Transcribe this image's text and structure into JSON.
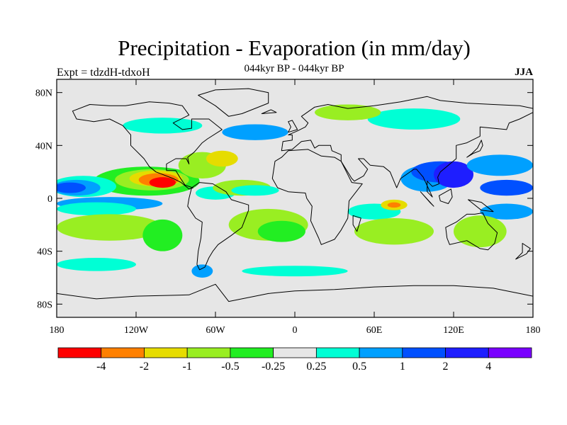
{
  "title": "Precipitation - Evaporation (in mm/day)",
  "subtitle": "044kyr BP - 044kyr BP",
  "left_label": "Expt = tdzdH-tdxoH",
  "right_label": "JJA",
  "map": {
    "projection": "cylindrical-equidistant",
    "lon_range": [
      -180,
      180
    ],
    "lat_range": [
      -90,
      90
    ],
    "background_color": "#e6e6e6",
    "y_ticks": [
      {
        "lat": 80,
        "label": "80N"
      },
      {
        "lat": 40,
        "label": "40N"
      },
      {
        "lat": 0,
        "label": "0"
      },
      {
        "lat": -40,
        "label": "40S"
      },
      {
        "lat": -80,
        "label": "80S"
      }
    ],
    "x_ticks": [
      {
        "lon": -180,
        "label": "180"
      },
      {
        "lon": -120,
        "label": "120W"
      },
      {
        "lon": -60,
        "label": "60W"
      },
      {
        "lon": 0,
        "label": "0"
      },
      {
        "lon": 60,
        "label": "60E"
      },
      {
        "lon": 120,
        "label": "120E"
      },
      {
        "lon": 180,
        "label": "180"
      }
    ]
  },
  "colorbar": {
    "colors": [
      "#ff0000",
      "#ff8000",
      "#e6dc00",
      "#99ee22",
      "#22ee22",
      "#e6e6e6",
      "#00ffd5",
      "#00a0ff",
      "#0050ff",
      "#1e1eff",
      "#7a00ff"
    ],
    "labels": [
      "-4",
      "-2",
      "-1",
      "-0.5",
      "-0.25",
      "0.25",
      "0.5",
      "1",
      "2",
      "4"
    ]
  },
  "fields": [
    {
      "color": "#22ee22",
      "lon": -112,
      "lat": 13,
      "rx": 40,
      "ry": 11
    },
    {
      "color": "#99ee22",
      "lon": -108,
      "lat": 14,
      "rx": 28,
      "ry": 8
    },
    {
      "color": "#e6dc00",
      "lon": -105,
      "lat": 15,
      "rx": 20,
      "ry": 6
    },
    {
      "color": "#ff8000",
      "lon": -103,
      "lat": 14,
      "rx": 15,
      "ry": 5
    },
    {
      "color": "#ff0000",
      "lon": -100,
      "lat": 12,
      "rx": 10,
      "ry": 4
    },
    {
      "color": "#00ffd5",
      "lon": -160,
      "lat": 9,
      "rx": 25,
      "ry": 8
    },
    {
      "color": "#00a0ff",
      "lon": -165,
      "lat": 8,
      "rx": 18,
      "ry": 6
    },
    {
      "color": "#0050ff",
      "lon": -170,
      "lat": 8,
      "rx": 12,
      "ry": 4
    },
    {
      "color": "#00a0ff",
      "lon": -140,
      "lat": -4,
      "rx": 40,
      "ry": 5
    },
    {
      "color": "#00ffd5",
      "lon": -150,
      "lat": -8,
      "rx": 30,
      "ry": 5
    },
    {
      "color": "#99ee22",
      "lon": -140,
      "lat": -22,
      "rx": 40,
      "ry": 10
    },
    {
      "color": "#22ee22",
      "lon": -100,
      "lat": -28,
      "rx": 15,
      "ry": 12
    },
    {
      "color": "#00ffd5",
      "lon": -60,
      "lat": 4,
      "rx": 15,
      "ry": 5
    },
    {
      "color": "#99ee22",
      "lon": -70,
      "lat": 25,
      "rx": 18,
      "ry": 10
    },
    {
      "color": "#e6dc00",
      "lon": -55,
      "lat": 30,
      "rx": 12,
      "ry": 6
    },
    {
      "color": "#99ee22",
      "lon": -40,
      "lat": 8,
      "rx": 22,
      "ry": 6
    },
    {
      "color": "#00ffd5",
      "lon": -30,
      "lat": 6,
      "rx": 18,
      "ry": 4
    },
    {
      "color": "#99ee22",
      "lon": -20,
      "lat": -20,
      "rx": 30,
      "ry": 12
    },
    {
      "color": "#22ee22",
      "lon": -10,
      "lat": -25,
      "rx": 18,
      "ry": 8
    },
    {
      "color": "#00ffd5",
      "lon": 60,
      "lat": -10,
      "rx": 20,
      "ry": 6
    },
    {
      "color": "#99ee22",
      "lon": 75,
      "lat": -25,
      "rx": 30,
      "ry": 10
    },
    {
      "color": "#e6dc00",
      "lon": 75,
      "lat": -5,
      "rx": 10,
      "ry": 4
    },
    {
      "color": "#ff8000",
      "lon": 75,
      "lat": -5,
      "rx": 5,
      "ry": 2
    },
    {
      "color": "#00a0ff",
      "lon": 100,
      "lat": 15,
      "rx": 20,
      "ry": 10
    },
    {
      "color": "#0050ff",
      "lon": 110,
      "lat": 20,
      "rx": 22,
      "ry": 8
    },
    {
      "color": "#1e1eff",
      "lon": 120,
      "lat": 18,
      "rx": 15,
      "ry": 10
    },
    {
      "color": "#00a0ff",
      "lon": 155,
      "lat": 25,
      "rx": 25,
      "ry": 8
    },
    {
      "color": "#0050ff",
      "lon": 160,
      "lat": 8,
      "rx": 20,
      "ry": 6
    },
    {
      "color": "#00a0ff",
      "lon": 160,
      "lat": -10,
      "rx": 20,
      "ry": 6
    },
    {
      "color": "#99ee22",
      "lon": 140,
      "lat": -25,
      "rx": 20,
      "ry": 12
    },
    {
      "color": "#00ffd5",
      "lon": -150,
      "lat": -50,
      "rx": 30,
      "ry": 5
    },
    {
      "color": "#00a0ff",
      "lon": -70,
      "lat": -55,
      "rx": 8,
      "ry": 5
    },
    {
      "color": "#00ffd5",
      "lon": 0,
      "lat": -55,
      "rx": 40,
      "ry": 4
    },
    {
      "color": "#00a0ff",
      "lon": -30,
      "lat": 50,
      "rx": 25,
      "ry": 6
    },
    {
      "color": "#00ffd5",
      "lon": -100,
      "lat": 55,
      "rx": 30,
      "ry": 6
    },
    {
      "color": "#00ffd5",
      "lon": 90,
      "lat": 60,
      "rx": 35,
      "ry": 8
    },
    {
      "color": "#99ee22",
      "lon": 40,
      "lat": 65,
      "rx": 25,
      "ry": 6
    }
  ],
  "continents": [
    [
      [
        -168,
        66
      ],
      [
        -155,
        71
      ],
      [
        -140,
        70
      ],
      [
        -128,
        70
      ],
      [
        -110,
        73
      ],
      [
        -95,
        72
      ],
      [
        -85,
        70
      ],
      [
        -80,
        63
      ],
      [
        -92,
        57
      ],
      [
        -85,
        52
      ],
      [
        -78,
        53
      ],
      [
        -78,
        60
      ],
      [
        -65,
        60
      ],
      [
        -55,
        52
      ],
      [
        -66,
        45
      ],
      [
        -70,
        42
      ],
      [
        -76,
        35
      ],
      [
        -81,
        31
      ],
      [
        -80,
        26
      ],
      [
        -82,
        30
      ],
      [
        -90,
        30
      ],
      [
        -97,
        26
      ],
      [
        -97,
        21
      ],
      [
        -90,
        21
      ],
      [
        -87,
        16
      ],
      [
        -83,
        10
      ],
      [
        -77,
        8
      ],
      [
        -80,
        7
      ],
      [
        -86,
        12
      ],
      [
        -92,
        15
      ],
      [
        -105,
        20
      ],
      [
        -110,
        24
      ],
      [
        -114,
        30
      ],
      [
        -117,
        33
      ],
      [
        -124,
        40
      ],
      [
        -124,
        48
      ],
      [
        -130,
        55
      ],
      [
        -140,
        60
      ],
      [
        -152,
        58
      ],
      [
        -165,
        60
      ],
      [
        -168,
        66
      ]
    ],
    [
      [
        -78,
        8
      ],
      [
        -72,
        12
      ],
      [
        -62,
        11
      ],
      [
        -52,
        5
      ],
      [
        -48,
        -1
      ],
      [
        -35,
        -5
      ],
      [
        -35,
        -9
      ],
      [
        -40,
        -22
      ],
      [
        -48,
        -28
      ],
      [
        -58,
        -35
      ],
      [
        -62,
        -40
      ],
      [
        -65,
        -45
      ],
      [
        -68,
        -52
      ],
      [
        -72,
        -54
      ],
      [
        -74,
        -50
      ],
      [
        -73,
        -40
      ],
      [
        -71,
        -30
      ],
      [
        -70,
        -18
      ],
      [
        -75,
        -15
      ],
      [
        -81,
        -6
      ],
      [
        -80,
        0
      ],
      [
        -78,
        8
      ]
    ],
    [
      [
        -73,
        78
      ],
      [
        -60,
        82
      ],
      [
        -35,
        83
      ],
      [
        -20,
        80
      ],
      [
        -20,
        72
      ],
      [
        -40,
        64
      ],
      [
        -50,
        62
      ],
      [
        -60,
        70
      ],
      [
        -73,
        78
      ]
    ],
    [
      [
        -17,
        15
      ],
      [
        -15,
        28
      ],
      [
        -10,
        31
      ],
      [
        -5,
        36
      ],
      [
        10,
        37
      ],
      [
        20,
        32
      ],
      [
        30,
        31
      ],
      [
        35,
        28
      ],
      [
        43,
        12
      ],
      [
        51,
        11
      ],
      [
        41,
        -2
      ],
      [
        40,
        -15
      ],
      [
        35,
        -24
      ],
      [
        30,
        -31
      ],
      [
        20,
        -35
      ],
      [
        18,
        -30
      ],
      [
        12,
        -17
      ],
      [
        13,
        -6
      ],
      [
        9,
        0
      ],
      [
        8,
        4
      ],
      [
        -5,
        5
      ],
      [
        -13,
        8
      ],
      [
        -17,
        15
      ]
    ],
    [
      [
        -10,
        36
      ],
      [
        -9,
        43
      ],
      [
        -2,
        44
      ],
      [
        -2,
        48
      ],
      [
        -5,
        48
      ],
      [
        2,
        51
      ],
      [
        8,
        54
      ],
      [
        10,
        57
      ],
      [
        5,
        62
      ],
      [
        15,
        69
      ],
      [
        25,
        71
      ],
      [
        40,
        68
      ],
      [
        60,
        70
      ],
      [
        80,
        73
      ],
      [
        100,
        77
      ],
      [
        110,
        74
      ],
      [
        130,
        72
      ],
      [
        150,
        71
      ],
      [
        170,
        70
      ],
      [
        180,
        68
      ],
      [
        180,
        65
      ],
      [
        170,
        60
      ],
      [
        162,
        57
      ],
      [
        160,
        52
      ],
      [
        140,
        54
      ],
      [
        140,
        47
      ],
      [
        130,
        42
      ],
      [
        122,
        40
      ],
      [
        122,
        30
      ],
      [
        110,
        20
      ],
      [
        108,
        16
      ],
      [
        109,
        11
      ],
      [
        104,
        9
      ],
      [
        100,
        13
      ],
      [
        100,
        5
      ],
      [
        104,
        1
      ],
      [
        97,
        16
      ],
      [
        92,
        22
      ],
      [
        90,
        22
      ],
      [
        80,
        15
      ],
      [
        77,
        8
      ],
      [
        72,
        20
      ],
      [
        67,
        24
      ],
      [
        57,
        25
      ],
      [
        52,
        30
      ],
      [
        48,
        30
      ],
      [
        55,
        22
      ],
      [
        52,
        17
      ],
      [
        45,
        13
      ],
      [
        43,
        15
      ],
      [
        35,
        28
      ],
      [
        35,
        33
      ],
      [
        28,
        36
      ],
      [
        27,
        40
      ],
      [
        18,
        40
      ],
      [
        15,
        38
      ],
      [
        12,
        44
      ],
      [
        5,
        43
      ],
      [
        -2,
        37
      ],
      [
        -10,
        36
      ]
    ],
    [
      [
        114,
        -22
      ],
      [
        122,
        -18
      ],
      [
        130,
        -12
      ],
      [
        136,
        -12
      ],
      [
        142,
        -11
      ],
      [
        146,
        -19
      ],
      [
        153,
        -26
      ],
      [
        151,
        -34
      ],
      [
        146,
        -39
      ],
      [
        140,
        -38
      ],
      [
        135,
        -35
      ],
      [
        130,
        -32
      ],
      [
        117,
        -35
      ],
      [
        115,
        -30
      ],
      [
        114,
        -22
      ]
    ],
    [
      [
        -180,
        -72
      ],
      [
        -150,
        -76
      ],
      [
        -120,
        -74
      ],
      [
        -80,
        -73
      ],
      [
        -60,
        -65
      ],
      [
        -50,
        -78
      ],
      [
        -20,
        -72
      ],
      [
        0,
        -70
      ],
      [
        30,
        -69
      ],
      [
        60,
        -67
      ],
      [
        90,
        -66
      ],
      [
        120,
        -66
      ],
      [
        150,
        -68
      ],
      [
        170,
        -72
      ],
      [
        180,
        -74
      ],
      [
        180,
        -90
      ],
      [
        -180,
        -90
      ],
      [
        -180,
        -72
      ]
    ],
    [
      [
        -5,
        50
      ],
      [
        -3,
        54
      ],
      [
        -5,
        58
      ],
      [
        -2,
        59
      ],
      [
        2,
        52
      ],
      [
        -5,
        50
      ]
    ],
    [
      [
        130,
        31
      ],
      [
        135,
        34
      ],
      [
        140,
        36
      ],
      [
        142,
        40
      ],
      [
        141,
        44
      ],
      [
        138,
        38
      ],
      [
        134,
        34
      ],
      [
        130,
        31
      ]
    ],
    [
      [
        95,
        5
      ],
      [
        105,
        -6
      ],
      [
        102,
        -3
      ],
      [
        95,
        5
      ]
    ],
    [
      [
        109,
        2
      ],
      [
        118,
        7
      ],
      [
        119,
        1
      ],
      [
        116,
        -4
      ],
      [
        110,
        -2
      ],
      [
        109,
        2
      ]
    ],
    [
      [
        131,
        -1
      ],
      [
        141,
        -3
      ],
      [
        150,
        -10
      ],
      [
        141,
        -9
      ],
      [
        131,
        -1
      ]
    ],
    [
      [
        44,
        -13
      ],
      [
        50,
        -15
      ],
      [
        47,
        -25
      ],
      [
        44,
        -20
      ],
      [
        44,
        -13
      ]
    ],
    [
      [
        172,
        -34
      ],
      [
        178,
        -38
      ],
      [
        175,
        -42
      ],
      [
        167,
        -46
      ],
      [
        172,
        -41
      ],
      [
        172,
        -34
      ]
    ],
    [
      [
        -25,
        64
      ],
      [
        -14,
        65
      ],
      [
        -18,
        67
      ],
      [
        -25,
        64
      ]
    ]
  ]
}
